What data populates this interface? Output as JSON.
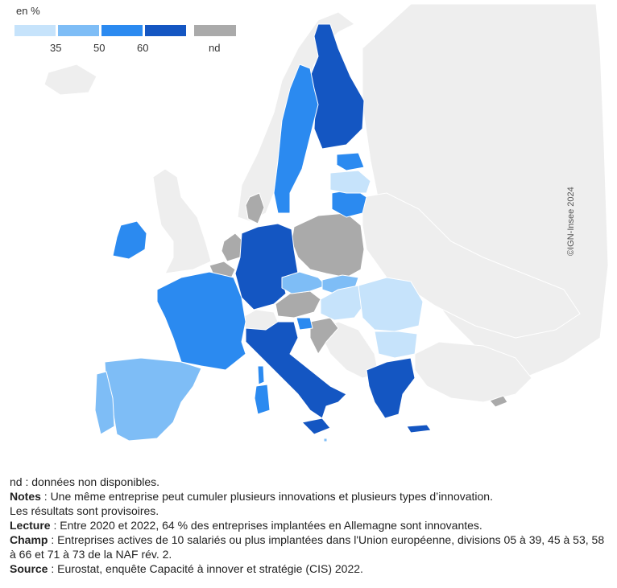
{
  "legend": {
    "title": "en %",
    "ticks": [
      "35",
      "50",
      "60",
      "nd"
    ],
    "colors": {
      "c1": "#c6e3fb",
      "c2": "#7ebdf6",
      "c3": "#2b8af0",
      "c4": "#1456c2",
      "nd": "#aaaaaa",
      "other": "#eeeeee"
    }
  },
  "credit": "©IGN-Insee 2024",
  "notes": {
    "nd_line": "nd : données non disponibles.",
    "notes_label": "Notes",
    "notes_text": " : Une même entreprise peut cumuler plusieurs innovations et plusieurs types d’innovation.",
    "notes_text2": "Les résultats sont provisoires.",
    "lecture_label": "Lecture",
    "lecture_text": " : Entre 2020 et 2022, 64 % des entreprises implantées en Allemagne sont innovantes.",
    "champ_label": "Champ",
    "champ_text": " : Entreprises actives de 10 salariés ou plus implantées dans l'Union européenne, divisions 05 à 39, 45 à 53, 58 à 66 et 71 à 73 de la NAF rév. 2.",
    "source_label": "Source",
    "source_text": " : Eurostat, enquête Capacité à innover et stratégie (CIS) 2022."
  }
}
